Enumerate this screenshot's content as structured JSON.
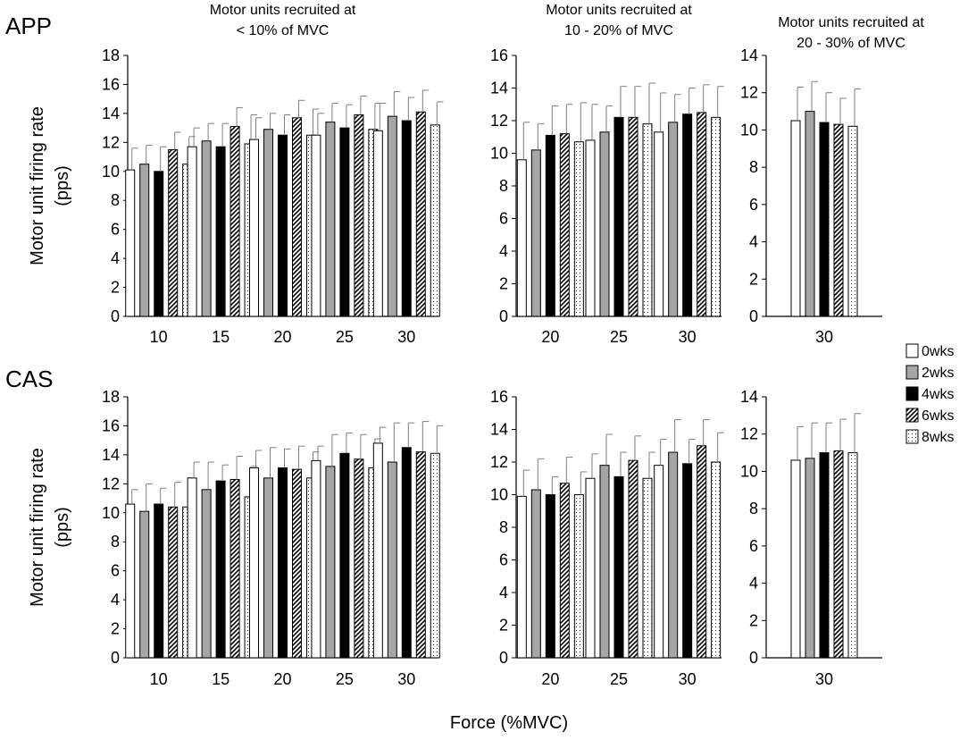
{
  "chart_data": {
    "type": "bar",
    "x_axis_label": "Force (%MVC)",
    "y_axis_label_lines": [
      "Motor unit firing rate",
      "(pps)"
    ],
    "legend": {
      "placement": "right",
      "entries": [
        {
          "name": "0wks",
          "pattern": "white"
        },
        {
          "name": "2wks",
          "pattern": "gray"
        },
        {
          "name": "4wks",
          "pattern": "black"
        },
        {
          "name": "6wks",
          "pattern": "diagonal"
        },
        {
          "name": "8wks",
          "pattern": "dots"
        }
      ]
    },
    "column_titles": [
      [
        "Motor units recruited at",
        "< 10% of MVC"
      ],
      [
        "Motor units recruited at",
        "10 - 20% of MVC"
      ],
      [
        "Motor units recruited at",
        "20 - 30% of MVC"
      ]
    ],
    "rows": [
      {
        "label": "APP",
        "panels": [
          {
            "categories": [
              "10",
              "15",
              "20",
              "25",
              "30"
            ],
            "ylim": [
              0,
              18
            ],
            "yticks": [
              0,
              2,
              4,
              6,
              8,
              10,
              12,
              14,
              16,
              18
            ],
            "series": [
              {
                "name": "0wks",
                "values": [
                  10.1,
                  11.7,
                  12.2,
                  12.5,
                  12.8
                ],
                "errors": [
                  1.5,
                  1.3,
                  1.5,
                  1.5,
                  1.9
                ]
              },
              {
                "name": "2wks",
                "values": [
                  10.5,
                  12.1,
                  12.9,
                  13.4,
                  13.8
                ],
                "errors": [
                  1.3,
                  1.2,
                  1.1,
                  1.3,
                  1.7
                ]
              },
              {
                "name": "4wks",
                "values": [
                  10.0,
                  11.7,
                  12.5,
                  13.0,
                  13.5
                ],
                "errors": [
                  1.7,
                  1.6,
                  1.4,
                  1.6,
                  1.6
                ]
              },
              {
                "name": "6wks",
                "values": [
                  11.5,
                  13.1,
                  13.7,
                  13.9,
                  14.1
                ],
                "errors": [
                  1.2,
                  1.3,
                  1.2,
                  1.3,
                  1.5
                ]
              },
              {
                "name": "8wks",
                "values": [
                  10.5,
                  11.9,
                  12.5,
                  12.9,
                  13.2
                ],
                "errors": [
                  1.9,
                  2.0,
                  1.8,
                  1.8,
                  1.6
                ]
              }
            ]
          },
          {
            "categories": [
              "20",
              "25",
              "30"
            ],
            "ylim": [
              0,
              16
            ],
            "yticks": [
              0,
              2,
              4,
              6,
              8,
              10,
              12,
              14,
              16
            ],
            "series": [
              {
                "name": "0wks",
                "values": [
                  9.6,
                  10.8,
                  11.3
                ],
                "errors": [
                  2.3,
                  2.2,
                  2.4
                ]
              },
              {
                "name": "2wks",
                "values": [
                  10.2,
                  11.3,
                  11.9
                ],
                "errors": [
                  1.6,
                  1.6,
                  1.7
                ]
              },
              {
                "name": "4wks",
                "values": [
                  11.1,
                  12.2,
                  12.4
                ],
                "errors": [
                  1.8,
                  1.9,
                  1.6
                ]
              },
              {
                "name": "6wks",
                "values": [
                  11.2,
                  12.2,
                  12.5
                ],
                "errors": [
                  1.8,
                  1.9,
                  1.7
                ]
              },
              {
                "name": "8wks",
                "values": [
                  10.7,
                  11.8,
                  12.2
                ],
                "errors": [
                  2.4,
                  2.5,
                  1.9
                ]
              }
            ]
          },
          {
            "categories": [
              "30"
            ],
            "ylim": [
              0,
              14
            ],
            "yticks": [
              0,
              2,
              4,
              6,
              8,
              10,
              12,
              14
            ],
            "series": [
              {
                "name": "0wks",
                "values": [
                  10.5
                ],
                "errors": [
                  1.8
                ]
              },
              {
                "name": "2wks",
                "values": [
                  11.0
                ],
                "errors": [
                  1.6
                ]
              },
              {
                "name": "4wks",
                "values": [
                  10.4
                ],
                "errors": [
                  1.6
                ]
              },
              {
                "name": "6wks",
                "values": [
                  10.3
                ],
                "errors": [
                  1.4
                ]
              },
              {
                "name": "8wks",
                "values": [
                  10.2
                ],
                "errors": [
                  2.0
                ]
              }
            ]
          }
        ]
      },
      {
        "label": "CAS",
        "panels": [
          {
            "categories": [
              "10",
              "15",
              "20",
              "25",
              "30"
            ],
            "ylim": [
              0,
              18
            ],
            "yticks": [
              0,
              2,
              4,
              6,
              8,
              10,
              12,
              14,
              16,
              18
            ],
            "series": [
              {
                "name": "0wks",
                "values": [
                  10.6,
                  12.4,
                  13.1,
                  13.6,
                  14.8
                ],
                "errors": [
                  1.0,
                  1.1,
                  1.2,
                  1.0,
                  1.1
                ]
              },
              {
                "name": "2wks",
                "values": [
                  10.1,
                  11.6,
                  12.4,
                  13.2,
                  13.5
                ],
                "errors": [
                  1.9,
                  1.9,
                  2.1,
                  2.2,
                  2.7
                ]
              },
              {
                "name": "4wks",
                "values": [
                  10.6,
                  12.2,
                  13.1,
                  14.1,
                  14.5
                ],
                "errors": [
                  1.1,
                  1.1,
                  1.3,
                  1.4,
                  1.7
                ]
              },
              {
                "name": "6wks",
                "values": [
                  10.4,
                  12.3,
                  13.0,
                  13.7,
                  14.2
                ],
                "errors": [
                  1.7,
                  1.6,
                  1.6,
                  1.7,
                  2.1
                ]
              },
              {
                "name": "8wks",
                "values": [
                  10.4,
                  11.1,
                  12.4,
                  13.1,
                  14.1
                ],
                "errors": [
                  2.0,
                  2.1,
                  1.8,
                  2.0,
                  1.9
                ]
              }
            ]
          },
          {
            "categories": [
              "20",
              "25",
              "30"
            ],
            "ylim": [
              0,
              16
            ],
            "yticks": [
              0,
              2,
              4,
              6,
              8,
              10,
              12,
              14,
              16
            ],
            "series": [
              {
                "name": "0wks",
                "values": [
                  9.9,
                  11.0,
                  11.8
                ],
                "errors": [
                  1.6,
                  1.5,
                  1.6
                ]
              },
              {
                "name": "2wks",
                "values": [
                  10.3,
                  11.8,
                  12.6
                ],
                "errors": [
                  1.9,
                  1.9,
                  2.0
                ]
              },
              {
                "name": "4wks",
                "values": [
                  10.0,
                  11.1,
                  11.9
                ],
                "errors": [
                  1.1,
                  1.5,
                  1.5
                ]
              },
              {
                "name": "6wks",
                "values": [
                  10.7,
                  12.1,
                  13.0
                ],
                "errors": [
                  1.6,
                  1.5,
                  1.6
                ]
              },
              {
                "name": "8wks",
                "values": [
                  10.0,
                  11.0,
                  12.0
                ],
                "errors": [
                  1.4,
                  1.6,
                  1.8
                ]
              }
            ]
          },
          {
            "categories": [
              "30"
            ],
            "ylim": [
              0,
              14
            ],
            "yticks": [
              0,
              2,
              4,
              6,
              8,
              10,
              12,
              14
            ],
            "series": [
              {
                "name": "0wks",
                "values": [
                  10.6
                ],
                "errors": [
                  1.8
                ]
              },
              {
                "name": "2wks",
                "values": [
                  10.7
                ],
                "errors": [
                  1.9
                ]
              },
              {
                "name": "4wks",
                "values": [
                  11.0
                ],
                "errors": [
                  1.6
                ]
              },
              {
                "name": "6wks",
                "values": [
                  11.1
                ],
                "errors": [
                  1.7
                ]
              },
              {
                "name": "8wks",
                "values": [
                  11.0
                ],
                "errors": [
                  2.1
                ]
              }
            ]
          }
        ]
      }
    ]
  }
}
